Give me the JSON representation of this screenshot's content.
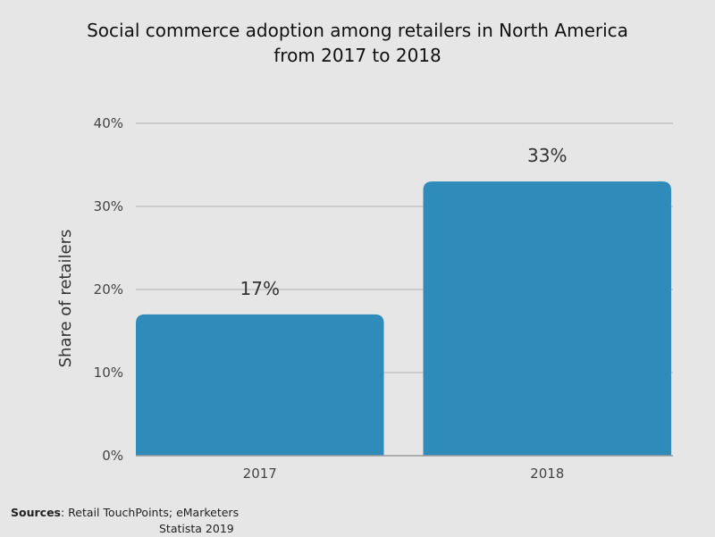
{
  "chart_data": {
    "type": "bar",
    "title": [
      "Social commerce adoption among retailers in North America",
      "from 2017 to 2018"
    ],
    "categories": [
      "2017",
      "2018"
    ],
    "values": [
      17,
      33
    ],
    "data_labels": [
      "17%",
      "33%"
    ],
    "xlabel": "",
    "ylabel": "Share of retailers",
    "ylim": [
      0,
      40
    ],
    "yticks": [
      0,
      10,
      20,
      30,
      40
    ],
    "ytick_labels": [
      "0%",
      "10%",
      "20%",
      "30%",
      "40%"
    ],
    "grid": true,
    "legend": "none",
    "bar_color": "#2e8bba"
  },
  "source": {
    "label": "Sources",
    "line1": ": Retail TouchPoints; eMarketers",
    "line2": "Statista 2019"
  }
}
